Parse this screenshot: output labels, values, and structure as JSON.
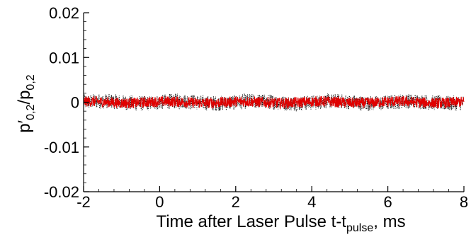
{
  "chart_data": {
    "type": "line",
    "title": "",
    "xlabel": {
      "main": "Time after Laser Pulse t-t",
      "subscript": "pulse",
      "suffix": ", ms"
    },
    "ylabel": {
      "numerator": "p",
      "numerator_prime": "′",
      "numerator_subscript": "0,2",
      "separator": "/",
      "denominator": "p",
      "denominator_subscript": "0,2"
    },
    "xlim": [
      -2,
      8
    ],
    "ylim": [
      -0.02,
      0.02
    ],
    "x_ticks": [
      -2,
      0,
      2,
      4,
      6,
      8
    ],
    "x_tick_labels": [
      "-2",
      "0",
      "2",
      "4",
      "6",
      "8"
    ],
    "y_ticks": [
      -0.02,
      -0.01,
      0,
      0.01,
      0.02
    ],
    "y_tick_labels": [
      "-0.02",
      "-0.01",
      "0",
      "0.01",
      "0.02"
    ],
    "grid": false,
    "legend": "none",
    "series": [
      {
        "color": "#000000",
        "style": "dotted",
        "x_range": [
          -2,
          8
        ],
        "mean": 0.0,
        "amplitude": 0.0017
      },
      {
        "color": "#e00000",
        "style": "solid",
        "x_range": [
          -2,
          8
        ],
        "mean": 0.0,
        "amplitude": 0.0012
      }
    ]
  }
}
